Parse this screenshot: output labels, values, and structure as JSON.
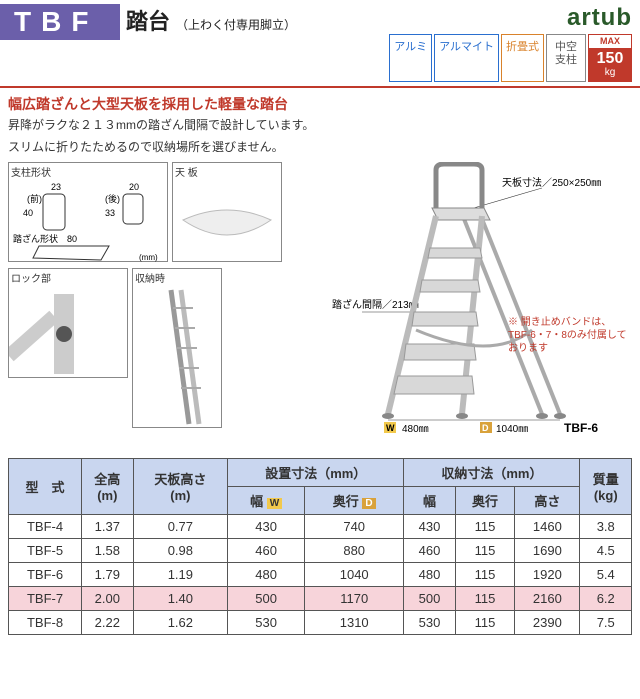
{
  "header": {
    "code": "TBF",
    "title": "踏台",
    "subtitle": "（上わく付専用脚立）",
    "brand": "artub"
  },
  "badges": [
    {
      "text": "アルミ",
      "cls": "blue"
    },
    {
      "text": "アルマイト",
      "cls": "blue"
    },
    {
      "text": "折畳式",
      "cls": "orange"
    },
    {
      "text": "中空\n支柱",
      "cls": "gray"
    }
  ],
  "max": {
    "label": "MAX",
    "value": "150",
    "unit": "kg"
  },
  "lead": "幅広踏ざんと大型天板を採用した軽量な踏台",
  "desc1": "昇降がラクな２１３mmの踏ざん間隔で設計しています。",
  "desc2": "スリムに折りたためるので収納場所を選びません。",
  "diag_labels": {
    "shichu": "支柱形状",
    "mae": "（前）",
    "ushiro": "（後）",
    "fumizan": "踏ざん形状",
    "tenban": "天 板",
    "lock": "ロック部",
    "shuno": "収納時",
    "d23": "23",
    "d40": "40",
    "d20": "20",
    "d33": "33",
    "d80": "80",
    "mm": "(mm)"
  },
  "ladder": {
    "tenban_dim": "天板寸法／250×250㎜",
    "fumizan_dim": "踏ざん間隔／213㎜",
    "w_val": "480㎜",
    "d_val": "1040㎜",
    "w_tag": "W",
    "d_tag": "D",
    "model": "TBF-6"
  },
  "note_red": "※ 開き止めバンドは、TBF-6・7・8のみ付属しております",
  "table": {
    "headers": {
      "model": "型　式",
      "zenko": "全高\n(m)",
      "tenban": "天板高さ\n(m)",
      "setchi": "設置寸法（mm）",
      "shuno": "収納寸法（mm）",
      "haba": "幅",
      "okuyuki": "奥行",
      "takasa": "高さ",
      "mass": "質量\n(kg)",
      "w_tag": "W",
      "d_tag": "D"
    },
    "rows": [
      {
        "m": "TBF-4",
        "zk": "1.37",
        "tb": "0.77",
        "sw": "430",
        "sd": "740",
        "cw": "430",
        "cd": "115",
        "ch": "1460",
        "kg": "3.8",
        "hl": false
      },
      {
        "m": "TBF-5",
        "zk": "1.58",
        "tb": "0.98",
        "sw": "460",
        "sd": "880",
        "cw": "460",
        "cd": "115",
        "ch": "1690",
        "kg": "4.5",
        "hl": false
      },
      {
        "m": "TBF-6",
        "zk": "1.79",
        "tb": "1.19",
        "sw": "480",
        "sd": "1040",
        "cw": "480",
        "cd": "115",
        "ch": "1920",
        "kg": "5.4",
        "hl": false
      },
      {
        "m": "TBF-7",
        "zk": "2.00",
        "tb": "1.40",
        "sw": "500",
        "sd": "1170",
        "cw": "500",
        "cd": "115",
        "ch": "2160",
        "kg": "6.2",
        "hl": true
      },
      {
        "m": "TBF-8",
        "zk": "2.22",
        "tb": "1.62",
        "sw": "530",
        "sd": "1310",
        "cw": "530",
        "cd": "115",
        "ch": "2390",
        "kg": "7.5",
        "hl": false
      }
    ]
  },
  "colors": {
    "purple": "#6b5faa",
    "red": "#c0392b",
    "thead_bg": "#c9d6ef",
    "hl_bg": "#f7d4da"
  }
}
